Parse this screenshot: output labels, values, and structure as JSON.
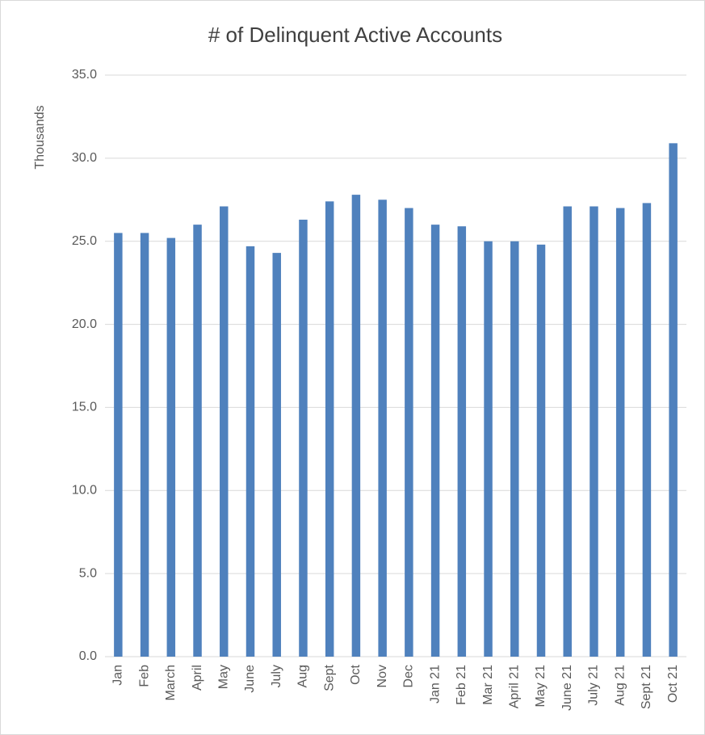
{
  "chart_data": {
    "type": "bar",
    "title": "# of Delinquent Active Accounts",
    "y_label": "Thousands",
    "categories": [
      "Jan",
      "Feb",
      "March",
      "April",
      "May",
      "June",
      "July",
      "Aug",
      "Sept",
      "Oct",
      "Nov",
      "Dec",
      "Jan 21",
      "Feb 21",
      "Mar 21",
      "April 21",
      "May 21",
      "June 21",
      "July 21",
      "Aug 21",
      "Sept 21",
      "Oct 21"
    ],
    "values": [
      25.5,
      25.5,
      25.2,
      26.0,
      27.1,
      24.7,
      24.3,
      26.3,
      27.4,
      27.8,
      27.5,
      27.0,
      26.0,
      25.9,
      25.0,
      25.0,
      24.8,
      27.1,
      27.1,
      27.0,
      27.3,
      30.9
    ],
    "color": "#4f81bd",
    "ylim": [
      0,
      35
    ],
    "yticks": [
      {
        "value": 0,
        "label": "0.0"
      },
      {
        "value": 5,
        "label": "5.0"
      },
      {
        "value": 10,
        "label": "10.0"
      },
      {
        "value": 15,
        "label": "15.0"
      },
      {
        "value": 20,
        "label": "20.0"
      },
      {
        "value": 25,
        "label": "25.0"
      },
      {
        "value": 30,
        "label": "30.0"
      },
      {
        "value": 35,
        "label": "35.0"
      }
    ],
    "grid": true
  }
}
